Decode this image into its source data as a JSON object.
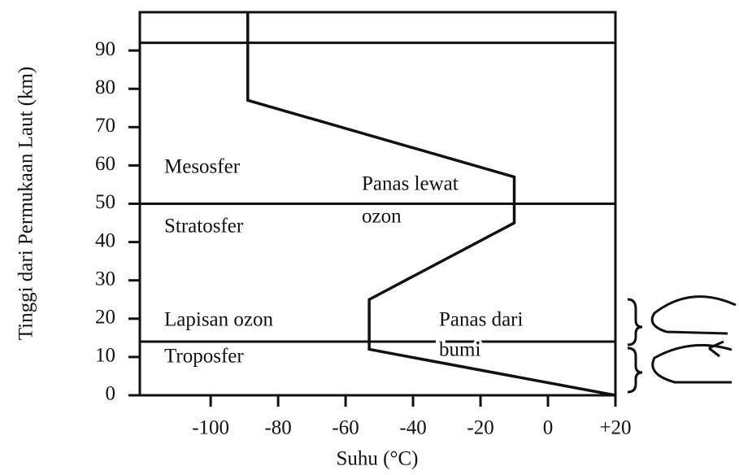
{
  "chart_data": {
    "type": "line",
    "y_label": "Tinggi dari Permukaan Laut (km)",
    "x_label": "Suhu (°C)",
    "x": [
      20,
      -53,
      -53,
      -10,
      -10,
      -89,
      -89
    ],
    "series": [
      {
        "color": "#111111",
        "values": [
          0,
          12,
          25,
          45,
          57,
          77,
          100
        ]
      }
    ],
    "boundaries": [
      14,
      50,
      92
    ],
    "xlim": [
      -121,
      20
    ],
    "ylim": [
      0,
      100
    ],
    "xticks": [
      -100,
      -80,
      -60,
      -40,
      -20,
      0,
      {
        "value": 20,
        "label": "+20"
      }
    ],
    "yticks": [
      0,
      10,
      20,
      30,
      40,
      50,
      60,
      70,
      80,
      90
    ],
    "annotations": [
      "Mesosfer",
      "Stratosfer",
      "Lapisan ozon",
      "Troposfer",
      "Panas lewat",
      "ozon",
      "Panas dari",
      "bumi"
    ]
  }
}
